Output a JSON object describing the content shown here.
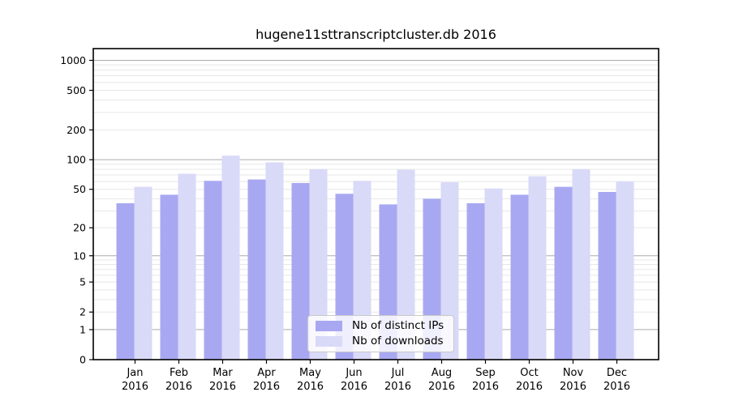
{
  "figure": {
    "title": "hugene11sttranscriptcluster.db 2016"
  },
  "legend": {
    "items": [
      {
        "label": "Nb of distinct IPs",
        "color": "#a8a8f2"
      },
      {
        "label": "Nb of downloads",
        "color": "#d9d9f8"
      }
    ]
  },
  "axes": {
    "y_tick_labels": [
      "1000",
      "500",
      "200",
      "100",
      "50",
      "20",
      "10",
      "5",
      "2",
      "1",
      "0"
    ],
    "x_tick_labels": [
      "Jan 2016",
      "Feb 2016",
      "Mar 2016",
      "Apr 2016",
      "May 2016",
      "Jun 2016",
      "Jul 2016",
      "Aug 2016",
      "Sep 2016",
      "Oct 2016",
      "Nov 2016",
      "Dec 2016"
    ]
  },
  "chart_data": {
    "type": "bar",
    "title": "hugene11sttranscriptcluster.db 2016",
    "categories": [
      "Jan 2016",
      "Feb 2016",
      "Mar 2016",
      "Apr 2016",
      "May 2016",
      "Jun 2016",
      "Jul 2016",
      "Aug 2016",
      "Sep 2016",
      "Oct 2016",
      "Nov 2016",
      "Dec 2016"
    ],
    "series": [
      {
        "name": "Nb of distinct IPs",
        "color": "#a8a8f2",
        "values": [
          36,
          44,
          61,
          63,
          58,
          45,
          35,
          40,
          36,
          44,
          53,
          47
        ]
      },
      {
        "name": "Nb of downloads",
        "color": "#d9d9f8",
        "values": [
          53,
          72,
          110,
          94,
          80,
          61,
          79,
          59,
          51,
          68,
          80,
          60
        ]
      }
    ],
    "xlabel": "",
    "ylabel": "",
    "y_scale": "log10(1+v)",
    "y_ticks": [
      1000,
      500,
      200,
      100,
      50,
      20,
      10,
      5,
      2,
      1,
      0
    ],
    "ylim": [
      0,
      1100
    ],
    "grid": true,
    "legend_position": "lower center",
    "colors": {
      "grid_major": "#ababab",
      "grid_minor": "#e7e7e7",
      "spine": "#000000",
      "text": "#000000",
      "background": "#ffffff"
    }
  }
}
